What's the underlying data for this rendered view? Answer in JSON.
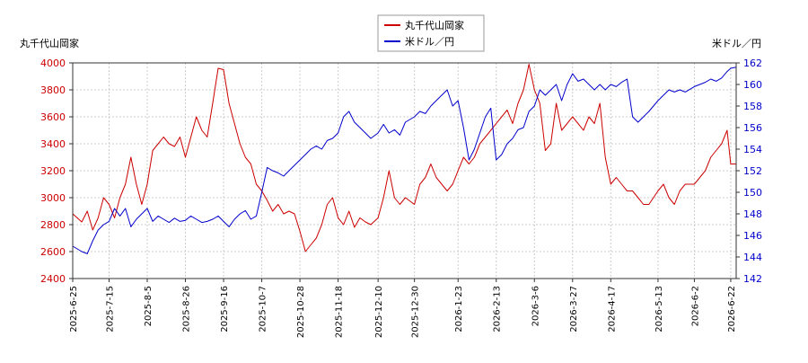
{
  "chart_data": {
    "type": "line",
    "legend": {
      "placement": "top-center",
      "entries": [
        "丸千代山岡家",
        "米ドル／円"
      ]
    },
    "left_axis": {
      "label": "丸千代山岡家",
      "ylim": [
        2400,
        4000
      ],
      "ticks": [
        2400,
        2600,
        2800,
        3000,
        3200,
        3400,
        3600,
        3800,
        4000
      ],
      "color": "#cc0000"
    },
    "right_axis": {
      "label": "米ドル／円",
      "ylim": [
        142,
        162
      ],
      "ticks": [
        142,
        144,
        146,
        148,
        150,
        152,
        154,
        156,
        158,
        160,
        162
      ],
      "color": "#0000cc"
    },
    "x_axis": {
      "range": [
        "2025-06-25",
        "2026-06-25"
      ],
      "ticks": [
        "2025-6-25",
        "2025-7-15",
        "2025-8-5",
        "2025-8-26",
        "2025-9-16",
        "2025-10-7",
        "2025-10-28",
        "2025-11-18",
        "2025-12-10",
        "2025-12-30",
        "2026-1-23",
        "2026-2-13",
        "2026-3-6",
        "2026-3-27",
        "2026-4-17",
        "2026-5-13",
        "2026-6-2",
        "2026-6-22"
      ],
      "tick_dates": [
        "2025-06-25",
        "2025-07-15",
        "2025-08-05",
        "2025-08-26",
        "2025-09-16",
        "2025-10-07",
        "2025-10-28",
        "2025-11-18",
        "2025-12-10",
        "2025-12-30",
        "2026-01-23",
        "2026-02-13",
        "2026-03-06",
        "2026-03-27",
        "2026-04-17",
        "2026-05-13",
        "2026-06-02",
        "2026-06-22"
      ]
    },
    "grid": true,
    "series": [
      {
        "name": "丸千代山岡家",
        "axis": "left",
        "color": "#cc0000",
        "x": [
          "2025-06-25",
          "2025-06-30",
          "2025-07-03",
          "2025-07-06",
          "2025-07-09",
          "2025-07-12",
          "2025-07-15",
          "2025-07-18",
          "2025-07-21",
          "2025-07-24",
          "2025-07-27",
          "2025-07-30",
          "2025-08-02",
          "2025-08-05",
          "2025-08-08",
          "2025-08-11",
          "2025-08-14",
          "2025-08-17",
          "2025-08-20",
          "2025-08-23",
          "2025-08-26",
          "2025-08-29",
          "2025-09-01",
          "2025-09-04",
          "2025-09-07",
          "2025-09-10",
          "2025-09-13",
          "2025-09-16",
          "2025-09-19",
          "2025-09-22",
          "2025-09-25",
          "2025-09-28",
          "2025-10-01",
          "2025-10-04",
          "2025-10-07",
          "2025-10-10",
          "2025-10-13",
          "2025-10-16",
          "2025-10-19",
          "2025-10-22",
          "2025-10-25",
          "2025-10-28",
          "2025-10-31",
          "2025-11-03",
          "2025-11-06",
          "2025-11-09",
          "2025-11-12",
          "2025-11-15",
          "2025-11-18",
          "2025-11-21",
          "2025-11-24",
          "2025-11-27",
          "2025-11-30",
          "2025-12-03",
          "2025-12-06",
          "2025-12-10",
          "2025-12-13",
          "2025-12-16",
          "2025-12-19",
          "2025-12-22",
          "2025-12-25",
          "2025-12-30",
          "2026-01-02",
          "2026-01-05",
          "2026-01-08",
          "2026-01-11",
          "2026-01-14",
          "2026-01-17",
          "2026-01-20",
          "2026-01-23",
          "2026-01-26",
          "2026-01-29",
          "2026-02-01",
          "2026-02-04",
          "2026-02-07",
          "2026-02-10",
          "2026-02-13",
          "2026-02-16",
          "2026-02-19",
          "2026-02-22",
          "2026-02-25",
          "2026-02-28",
          "2026-03-03",
          "2026-03-06",
          "2026-03-09",
          "2026-03-12",
          "2026-03-15",
          "2026-03-18",
          "2026-03-21",
          "2026-03-24",
          "2026-03-27",
          "2026-03-30",
          "2026-04-02",
          "2026-04-05",
          "2026-04-08",
          "2026-04-11",
          "2026-04-14",
          "2026-04-17",
          "2026-04-20",
          "2026-04-23",
          "2026-04-26",
          "2026-04-29",
          "2026-05-02",
          "2026-05-05",
          "2026-05-08",
          "2026-05-13",
          "2026-05-16",
          "2026-05-19",
          "2026-05-22",
          "2026-05-25",
          "2026-05-28",
          "2026-06-02",
          "2026-06-05",
          "2026-06-08",
          "2026-06-11",
          "2026-06-14",
          "2026-06-17",
          "2026-06-20",
          "2026-06-22",
          "2026-06-25"
        ],
        "values": [
          2880,
          2820,
          2900,
          2760,
          2850,
          3000,
          2950,
          2850,
          3000,
          3100,
          3300,
          3100,
          2950,
          3100,
          3350,
          3400,
          3450,
          3400,
          3380,
          3450,
          3300,
          3450,
          3600,
          3500,
          3450,
          3700,
          3960,
          3950,
          3700,
          3550,
          3400,
          3300,
          3250,
          3100,
          3050,
          2980,
          2900,
          2950,
          2880,
          2900,
          2880,
          2750,
          2600,
          2650,
          2700,
          2800,
          2950,
          3000,
          2850,
          2800,
          2900,
          2780,
          2850,
          2820,
          2800,
          2850,
          3000,
          3200,
          3000,
          2950,
          3000,
          2950,
          3100,
          3150,
          3250,
          3150,
          3100,
          3050,
          3100,
          3200,
          3300,
          3250,
          3300,
          3400,
          3450,
          3500,
          3550,
          3600,
          3650,
          3550,
          3700,
          3800,
          3990,
          3800,
          3700,
          3350,
          3400,
          3700,
          3500,
          3550,
          3600,
          3550,
          3500,
          3600,
          3550,
          3700,
          3300,
          3100,
          3150,
          3100,
          3050,
          3050,
          3000,
          2950,
          2950,
          3050,
          3100,
          3000,
          2950,
          3050,
          3100,
          3100,
          3150,
          3200,
          3300,
          3350,
          3400,
          3500,
          3250,
          3250
        ]
      },
      {
        "name": "米ドル／円",
        "axis": "right",
        "color": "#0000cc",
        "x": [
          "2025-06-25",
          "2025-06-30",
          "2025-07-03",
          "2025-07-06",
          "2025-07-09",
          "2025-07-12",
          "2025-07-15",
          "2025-07-18",
          "2025-07-21",
          "2025-07-24",
          "2025-07-27",
          "2025-07-30",
          "2025-08-02",
          "2025-08-05",
          "2025-08-08",
          "2025-08-11",
          "2025-08-14",
          "2025-08-17",
          "2025-08-20",
          "2025-08-23",
          "2025-08-26",
          "2025-08-29",
          "2025-09-01",
          "2025-09-04",
          "2025-09-07",
          "2025-09-10",
          "2025-09-13",
          "2025-09-16",
          "2025-09-19",
          "2025-09-22",
          "2025-09-25",
          "2025-09-28",
          "2025-10-01",
          "2025-10-04",
          "2025-10-07",
          "2025-10-10",
          "2025-10-13",
          "2025-10-16",
          "2025-10-19",
          "2025-10-22",
          "2025-10-25",
          "2025-10-28",
          "2025-10-31",
          "2025-11-03",
          "2025-11-06",
          "2025-11-09",
          "2025-11-12",
          "2025-11-15",
          "2025-11-18",
          "2025-11-21",
          "2025-11-24",
          "2025-11-27",
          "2025-11-30",
          "2025-12-03",
          "2025-12-06",
          "2025-12-10",
          "2025-12-13",
          "2025-12-16",
          "2025-12-19",
          "2025-12-22",
          "2025-12-25",
          "2025-12-30",
          "2026-01-02",
          "2026-01-05",
          "2026-01-08",
          "2026-01-11",
          "2026-01-14",
          "2026-01-17",
          "2026-01-20",
          "2026-01-23",
          "2026-01-26",
          "2026-01-29",
          "2026-02-01",
          "2026-02-04",
          "2026-02-07",
          "2026-02-10",
          "2026-02-13",
          "2026-02-16",
          "2026-02-19",
          "2026-02-22",
          "2026-02-25",
          "2026-02-28",
          "2026-03-03",
          "2026-03-06",
          "2026-03-09",
          "2026-03-12",
          "2026-03-15",
          "2026-03-18",
          "2026-03-21",
          "2026-03-24",
          "2026-03-27",
          "2026-03-30",
          "2026-04-02",
          "2026-04-05",
          "2026-04-08",
          "2026-04-11",
          "2026-04-14",
          "2026-04-17",
          "2026-04-20",
          "2026-04-23",
          "2026-04-26",
          "2026-04-29",
          "2026-05-02",
          "2026-05-05",
          "2026-05-08",
          "2026-05-13",
          "2026-05-16",
          "2026-05-19",
          "2026-05-22",
          "2026-05-25",
          "2026-05-28",
          "2026-06-02",
          "2026-06-05",
          "2026-06-08",
          "2026-06-11",
          "2026-06-14",
          "2026-06-17",
          "2026-06-20",
          "2026-06-22",
          "2026-06-25"
        ],
        "values": [
          145.0,
          144.5,
          144.3,
          145.5,
          146.5,
          147.0,
          147.3,
          148.5,
          147.8,
          148.5,
          146.8,
          147.5,
          148.0,
          148.5,
          147.3,
          147.8,
          147.5,
          147.2,
          147.6,
          147.3,
          147.4,
          147.8,
          147.5,
          147.2,
          147.3,
          147.5,
          147.8,
          147.3,
          146.8,
          147.5,
          148.0,
          148.3,
          147.5,
          147.8,
          150.0,
          152.3,
          152.0,
          151.8,
          151.5,
          152.0,
          152.5,
          153.0,
          153.5,
          154.0,
          154.3,
          154.0,
          154.8,
          155.0,
          155.5,
          157.0,
          157.5,
          156.5,
          156.0,
          155.5,
          155.0,
          155.5,
          156.3,
          155.5,
          155.8,
          155.3,
          156.5,
          157.0,
          157.5,
          157.3,
          158.0,
          158.5,
          159.0,
          159.5,
          158.0,
          158.5,
          156.0,
          153.0,
          154.0,
          155.5,
          157.0,
          157.8,
          153.0,
          153.5,
          154.5,
          155.0,
          155.8,
          156.0,
          157.5,
          158.0,
          159.5,
          159.0,
          159.5,
          160.0,
          158.5,
          160.0,
          161.0,
          160.3,
          160.5,
          160.0,
          159.5,
          160.0,
          159.5,
          160.0,
          159.8,
          160.2,
          160.5,
          157.0,
          156.5,
          157.0,
          157.5,
          158.5,
          159.0,
          159.5,
          159.3,
          159.5,
          159.3,
          159.8,
          160.0,
          160.2,
          160.5,
          160.3,
          160.6,
          161.2,
          161.5,
          161.6
        ]
      }
    ]
  }
}
